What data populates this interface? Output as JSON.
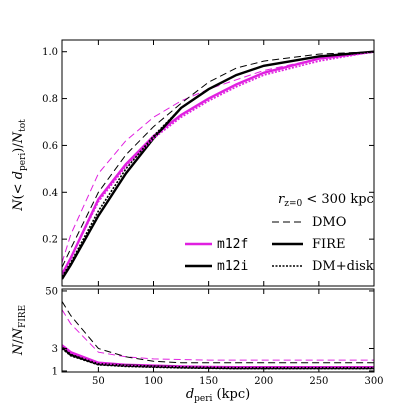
{
  "chart_data": [
    {
      "type": "line",
      "ylabel": {
        "n1": "N",
        "mid": "(< ",
        "d": "d",
        "sub": "peri",
        "close": ")/",
        "n2": "N",
        "sub2": "tot"
      },
      "x": [
        17,
        25,
        50,
        75,
        100,
        125,
        150,
        175,
        200,
        250,
        300
      ],
      "xlim": [
        17,
        300
      ],
      "xticks": [
        50,
        100,
        150,
        200,
        250,
        300
      ],
      "ylim": [
        0,
        1.05
      ],
      "yticks": [
        0.2,
        0.4,
        0.6,
        0.8,
        {
          "value": 1,
          "label": "1.0"
        }
      ],
      "series": [
        {
          "model": "DMO",
          "color": "#e020e0",
          "values": [
            0.1,
            0.22,
            0.48,
            0.62,
            0.72,
            0.79,
            0.84,
            0.88,
            0.92,
            0.97,
            1.0
          ]
        },
        {
          "model": "DMO",
          "color": "#000000",
          "values": [
            0.08,
            0.16,
            0.4,
            0.56,
            0.68,
            0.78,
            0.87,
            0.93,
            0.96,
            0.99,
            1.0
          ]
        },
        {
          "model": "FIRE",
          "color": "#e020e0",
          "values": [
            0.05,
            0.12,
            0.37,
            0.52,
            0.64,
            0.73,
            0.8,
            0.86,
            0.91,
            0.97,
            1.0
          ]
        },
        {
          "model": "FIRE",
          "color": "#000000",
          "values": [
            0.03,
            0.09,
            0.3,
            0.48,
            0.63,
            0.76,
            0.84,
            0.9,
            0.94,
            0.98,
            1.0
          ]
        },
        {
          "model": "DM+disk",
          "color": "#e020e0",
          "values": [
            0.05,
            0.12,
            0.36,
            0.51,
            0.63,
            0.72,
            0.79,
            0.85,
            0.9,
            0.96,
            1.0
          ]
        },
        {
          "model": "DM+disk",
          "color": "#000000",
          "values": [
            0.04,
            0.1,
            0.32,
            0.5,
            0.64,
            0.76,
            0.84,
            0.9,
            0.94,
            0.98,
            1.0
          ]
        }
      ],
      "annotation": {
        "r": "r",
        "sub": "z=0",
        "text": " < 300 kpc"
      },
      "legend": {
        "halos": [
          {
            "name": "m12f",
            "color": "#e020e0"
          },
          {
            "name": "m12i",
            "color": "#000000"
          }
        ],
        "models": [
          {
            "name": "DMO",
            "dash": "7,4",
            "width": 1
          },
          {
            "name": "FIRE",
            "dash": "none",
            "width": 2.4
          },
          {
            "name": "DM+disk",
            "dash": "2,1.5",
            "width": 1.6
          }
        ]
      }
    },
    {
      "type": "line",
      "ylabel": {
        "n1": "N",
        "slash": "/",
        "n2": "N",
        "sub": "FIRE"
      },
      "xlabel": {
        "d": "d",
        "sub": "peri",
        "unit": " (kpc)"
      },
      "x": [
        17,
        25,
        50,
        75,
        100,
        125,
        150,
        175,
        200,
        250,
        300
      ],
      "xlim": [
        17,
        300
      ],
      "xticks": [
        50,
        100,
        150,
        200,
        250,
        300
      ],
      "ylim": [
        0.95,
        55
      ],
      "ylog": true,
      "yticks": [
        1,
        3,
        50
      ],
      "series": [
        {
          "model": "DMO",
          "color": "#e020e0",
          "values": [
            20,
            10,
            2.5,
            2.0,
            1.8,
            1.75,
            1.7,
            1.7,
            1.7,
            1.7,
            1.7
          ]
        },
        {
          "model": "DMO",
          "color": "#000000",
          "values": [
            30,
            15,
            3,
            2,
            1.6,
            1.5,
            1.5,
            1.5,
            1.5,
            1.5,
            1.5
          ]
        },
        {
          "model": "FIRE",
          "color": "#e020e0",
          "values": [
            3.5,
            2.5,
            1.5,
            1.35,
            1.3,
            1.25,
            1.22,
            1.2,
            1.2,
            1.2,
            1.2
          ]
        },
        {
          "model": "FIRE",
          "color": "#000000",
          "values": [
            3.2,
            2.2,
            1.4,
            1.3,
            1.25,
            1.2,
            1.17,
            1.15,
            1.15,
            1.15,
            1.15
          ]
        },
        {
          "model": "DM+disk",
          "color": "#e020e0",
          "values": [
            3.4,
            2.4,
            1.45,
            1.3,
            1.25,
            1.22,
            1.2,
            1.18,
            1.18,
            1.18,
            1.18
          ]
        },
        {
          "model": "DM+disk",
          "color": "#000000",
          "values": [
            3.0,
            2.1,
            1.35,
            1.25,
            1.2,
            1.16,
            1.14,
            1.12,
            1.12,
            1.12,
            1.12
          ]
        }
      ]
    }
  ]
}
